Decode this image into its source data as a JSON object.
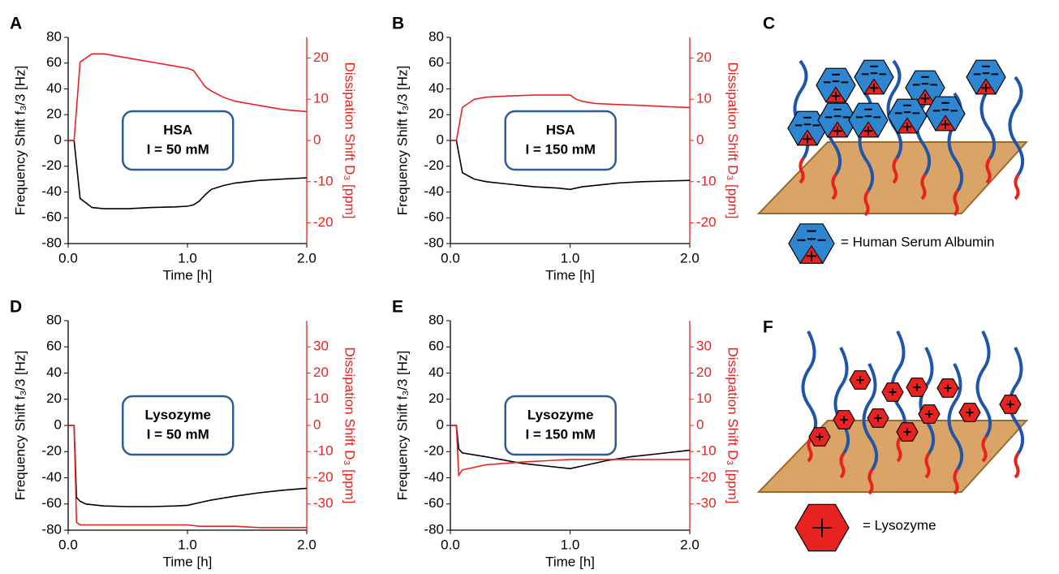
{
  "chart_data": [
    {
      "type": "line",
      "label": "A",
      "xlabel": "Time [h]",
      "ylabel": "Frequency Shift f₃/3 [Hz]",
      "y2label": "Dissipation Shift D₃ [ppm]",
      "annotation": [
        "HSA",
        "I = 50 mM"
      ],
      "xlim": [
        0,
        2
      ],
      "xticks": [
        {
          "value": 0,
          "label": "0.0"
        },
        {
          "value": 1,
          "label": "1.0"
        },
        {
          "value": 2,
          "label": "2.0"
        }
      ],
      "ylim": [
        -80,
        80
      ],
      "yticks": [
        -80,
        -60,
        -40,
        -20,
        0,
        20,
        40,
        60,
        80
      ],
      "y2lim": [
        -25,
        25
      ],
      "y2ticks": [
        -20,
        -10,
        0,
        10,
        20
      ],
      "x": [
        0,
        0.05,
        0.1,
        0.2,
        0.3,
        0.5,
        0.7,
        0.9,
        1.0,
        1.05,
        1.1,
        1.15,
        1.2,
        1.3,
        1.4,
        1.6,
        1.8,
        2.0
      ],
      "series": [
        {
          "color": "#000000",
          "values": [
            0,
            0,
            -45,
            -52,
            -53,
            -53,
            -52,
            -51.5,
            -51,
            -50,
            -47,
            -42,
            -38,
            -35,
            -33,
            -31,
            -30,
            -29
          ]
        },
        {
          "color": "#e8231f",
          "axis": "y2",
          "values": [
            0,
            0,
            19,
            21,
            21,
            20,
            19,
            18,
            17.5,
            17,
            15,
            13,
            12,
            10.5,
            9.5,
            8.5,
            7.5,
            7
          ]
        }
      ]
    },
    {
      "type": "line",
      "label": "B",
      "xlabel": "Time [h]",
      "ylabel": "Frequency Shift f₃/3 [Hz]",
      "y2label": "Dissipation Shift D₃ [ppm]",
      "annotation": [
        "HSA",
        "I = 150 mM"
      ],
      "xlim": [
        0,
        2
      ],
      "xticks": [
        {
          "value": 0,
          "label": "0.0"
        },
        {
          "value": 1,
          "label": "1.0"
        },
        {
          "value": 2,
          "label": "2.0"
        }
      ],
      "ylim": [
        -80,
        80
      ],
      "yticks": [
        -80,
        -60,
        -40,
        -20,
        0,
        20,
        40,
        60,
        80
      ],
      "y2lim": [
        -25,
        25
      ],
      "y2ticks": [
        -20,
        -10,
        0,
        10,
        20
      ],
      "x": [
        0,
        0.05,
        0.1,
        0.2,
        0.3,
        0.5,
        0.7,
        0.9,
        1.0,
        1.05,
        1.1,
        1.2,
        1.4,
        1.6,
        1.8,
        2.0
      ],
      "series": [
        {
          "color": "#000000",
          "values": [
            0,
            0,
            -25,
            -30,
            -32,
            -34,
            -36,
            -37,
            -38,
            -37,
            -36,
            -35,
            -33,
            -32,
            -31.5,
            -31
          ]
        },
        {
          "color": "#e8231f",
          "axis": "y2",
          "values": [
            0,
            0,
            8,
            10,
            10.5,
            10.8,
            11,
            11,
            11,
            10,
            9.5,
            9,
            8.7,
            8.5,
            8.2,
            8
          ]
        }
      ]
    },
    {
      "type": "line",
      "label": "D",
      "xlabel": "Time [h]",
      "ylabel": "Frequency Shift f₃/3 [Hz]",
      "y2label": "Dissipation Shift D₃ [ppm]",
      "annotation": [
        "Lysozyme",
        "I = 50 mM"
      ],
      "xlim": [
        0,
        2
      ],
      "xticks": [
        {
          "value": 0,
          "label": "0.0"
        },
        {
          "value": 1,
          "label": "1.0"
        },
        {
          "value": 2,
          "label": "2.0"
        }
      ],
      "ylim": [
        -80,
        80
      ],
      "yticks": [
        -80,
        -60,
        -40,
        -20,
        0,
        20,
        40,
        60,
        80
      ],
      "y2lim": [
        -40,
        40
      ],
      "y2ticks": [
        -30,
        -20,
        -10,
        0,
        10,
        20,
        30
      ],
      "x": [
        0,
        0.05,
        0.07,
        0.1,
        0.15,
        0.3,
        0.5,
        0.7,
        0.9,
        1.0,
        1.1,
        1.2,
        1.4,
        1.6,
        1.8,
        2.0
      ],
      "series": [
        {
          "color": "#000000",
          "values": [
            0,
            0,
            -55,
            -58,
            -60,
            -61.5,
            -62,
            -62,
            -61.5,
            -61,
            -59,
            -57,
            -54,
            -51.5,
            -49.5,
            -48
          ]
        },
        {
          "color": "#e8231f",
          "axis": "y2",
          "values": [
            0,
            0,
            -37,
            -38,
            -38,
            -38,
            -38,
            -38,
            -38,
            -38,
            -38.5,
            -38.5,
            -38.5,
            -39,
            -39,
            -39
          ]
        }
      ]
    },
    {
      "type": "line",
      "label": "E",
      "xlabel": "Time [h]",
      "ylabel": "Frequency Shift f₃/3 [Hz]",
      "y2label": "Dissipation Shift D₃ [ppm]",
      "annotation": [
        "Lysozyme",
        "I = 150 mM"
      ],
      "xlim": [
        0,
        2
      ],
      "xticks": [
        {
          "value": 0,
          "label": "0.0"
        },
        {
          "value": 1,
          "label": "1.0"
        },
        {
          "value": 2,
          "label": "2.0"
        }
      ],
      "ylim": [
        -80,
        80
      ],
      "yticks": [
        -80,
        -60,
        -40,
        -20,
        0,
        20,
        40,
        60,
        80
      ],
      "y2lim": [
        -40,
        40
      ],
      "y2ticks": [
        -30,
        -20,
        -10,
        0,
        10,
        20,
        30
      ],
      "x": [
        0,
        0.05,
        0.07,
        0.1,
        0.3,
        0.6,
        0.8,
        1.0,
        1.1,
        1.3,
        1.5,
        1.7,
        2.0
      ],
      "series": [
        {
          "color": "#000000",
          "values": [
            0,
            0,
            -18,
            -21,
            -24,
            -29,
            -31,
            -33,
            -31,
            -27,
            -24,
            -22,
            -19
          ]
        },
        {
          "color": "#e8231f",
          "axis": "y2",
          "values": [
            0,
            0,
            -19,
            -17,
            -15,
            -14,
            -13.5,
            -13,
            -13,
            -13,
            -13,
            -13,
            -13
          ]
        }
      ]
    }
  ],
  "diagrams": [
    {
      "label": "C",
      "legend": "= Human Serum Albumin"
    },
    {
      "label": "F",
      "legend": "= Lysozyme"
    }
  ]
}
